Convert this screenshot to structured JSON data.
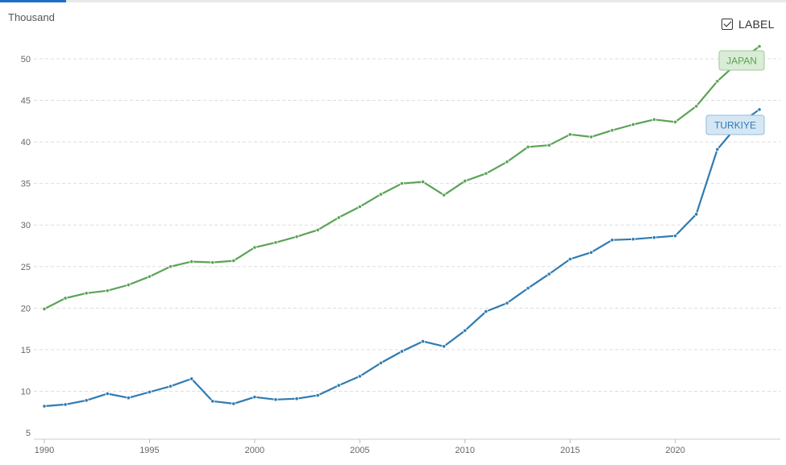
{
  "label_toggle": {
    "text": "LABEL",
    "checked": true,
    "icon": "checkbox-checked-icon"
  },
  "colors": {
    "japan": "#5ba356",
    "turkiye": "#2f7bb2",
    "grid": "#dddddd",
    "tab_active": "#1f6fc5"
  },
  "chart_data": {
    "type": "line",
    "ylabel": "Thousand",
    "xlim": [
      1990,
      2024
    ],
    "ylim": [
      5,
      52
    ],
    "yticks": [
      5,
      10,
      15,
      20,
      25,
      30,
      35,
      40,
      45,
      50
    ],
    "xticks": [
      1990,
      1995,
      2000,
      2005,
      2010,
      2015,
      2020
    ],
    "grid": "horizontal dashed",
    "x": [
      1990,
      1991,
      1992,
      1993,
      1994,
      1995,
      1996,
      1997,
      1998,
      1999,
      2000,
      2001,
      2002,
      2003,
      2004,
      2005,
      2006,
      2007,
      2008,
      2009,
      2010,
      2011,
      2012,
      2013,
      2014,
      2015,
      2016,
      2017,
      2018,
      2019,
      2020,
      2021,
      2022,
      2023,
      2024
    ],
    "series": [
      {
        "name": "JAPAN",
        "color": "#5ba356",
        "values": [
          19.9,
          21.2,
          21.8,
          22.1,
          22.8,
          23.8,
          25.0,
          25.6,
          25.5,
          25.7,
          27.3,
          27.9,
          28.6,
          29.4,
          30.9,
          32.2,
          33.7,
          35.0,
          35.2,
          33.6,
          35.3,
          36.2,
          37.6,
          39.4,
          39.6,
          40.9,
          40.6,
          41.4,
          42.1,
          42.7,
          42.4,
          44.3,
          47.3,
          49.6,
          51.5
        ]
      },
      {
        "name": "TURKIYE",
        "color": "#2f7bb2",
        "values": [
          8.2,
          8.4,
          8.9,
          9.7,
          9.2,
          9.9,
          10.6,
          11.5,
          8.8,
          8.5,
          9.3,
          9.0,
          9.1,
          9.5,
          10.7,
          11.8,
          13.4,
          14.8,
          16.0,
          15.4,
          17.3,
          19.6,
          20.6,
          22.4,
          24.1,
          25.9,
          26.7,
          28.2,
          28.3,
          28.5,
          28.7,
          31.3,
          39.1,
          42.1,
          43.9
        ]
      }
    ]
  }
}
